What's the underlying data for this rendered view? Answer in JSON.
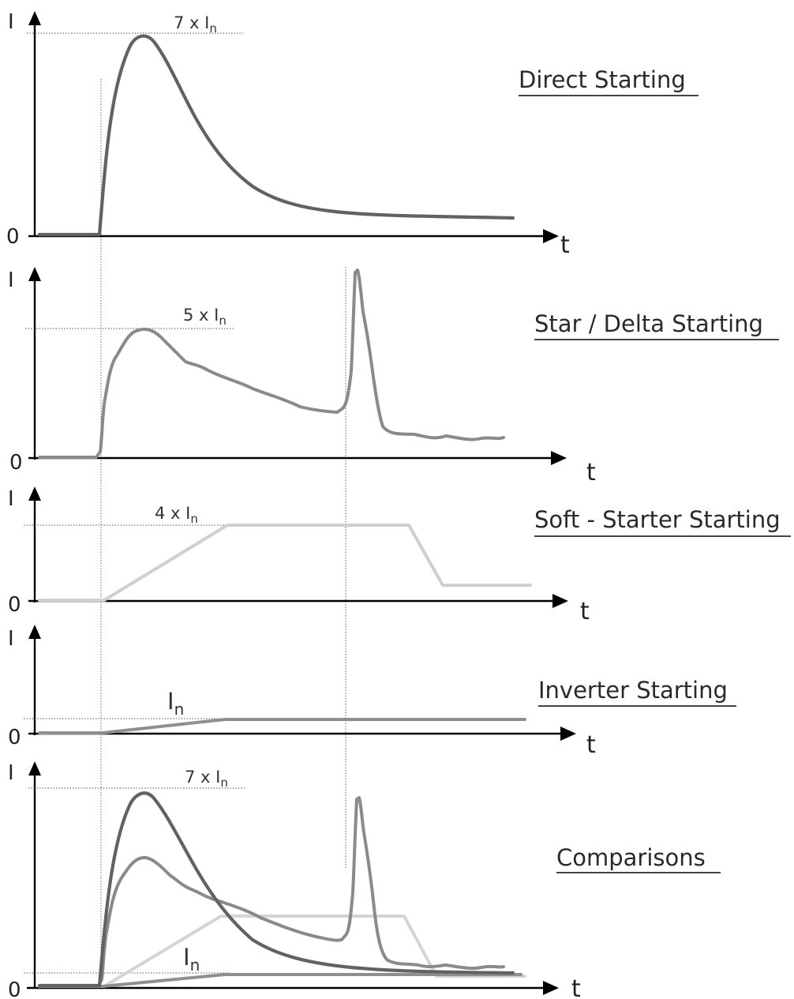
{
  "axes": {
    "y_label": "I",
    "zero_label": "0",
    "x_label": "t"
  },
  "panels": [
    {
      "title": "Direct Starting",
      "level_label": {
        "main": "7 x I",
        "sub": "n"
      }
    },
    {
      "title": "Star / Delta Starting",
      "level_label": {
        "main": "5 x I",
        "sub": "n"
      }
    },
    {
      "title": "Soft - Starter Starting",
      "level_label": {
        "main": "4 x I",
        "sub": "n"
      }
    },
    {
      "title": "Inverter Starting",
      "level_label": {
        "main": "I",
        "sub": "n"
      }
    },
    {
      "title": "Comparisons ",
      "level_label": {
        "main": "7 x I",
        "sub": "n"
      },
      "second_level_label": {
        "main": "I",
        "sub": "n"
      }
    }
  ],
  "colors": {
    "axis": "#000000",
    "direct": "#626262",
    "star_delta": "#8a8a8a",
    "soft_starter": "#cfcfcf",
    "inverter": "#8f8f8f"
  }
}
